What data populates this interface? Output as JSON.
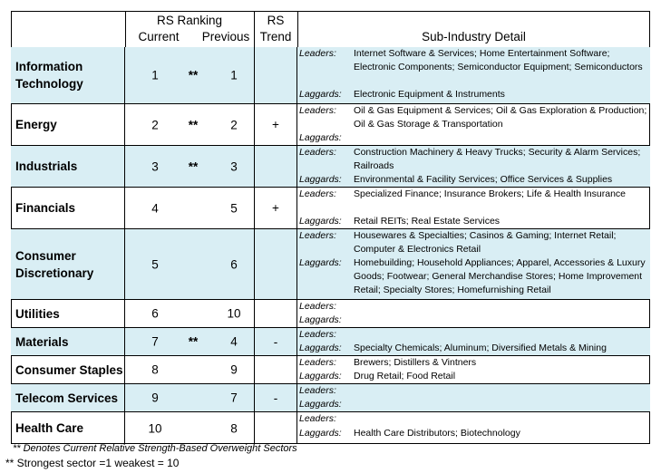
{
  "header": {
    "rs_ranking": "RS Ranking",
    "current": "Current",
    "previous": "Previous",
    "rs": "RS",
    "trend": "Trend",
    "sub_industry_detail": "Sub-Industry Detail"
  },
  "labels": {
    "leaders": "Leaders:",
    "laggards": "Laggards:"
  },
  "rows": [
    {
      "sector": "Information Technology",
      "current": "1",
      "star": "**",
      "previous": "1",
      "trend": "",
      "leaders": "Internet Software & Services; Home Entertainment Software; Electronic Components; Semiconductor Equipment; Semiconductors",
      "laggards": "Electronic Equipment & Instruments"
    },
    {
      "sector": "Energy",
      "current": "2",
      "star": "**",
      "previous": "2",
      "trend": "+",
      "leaders": "Oil & Gas Equipment & Services; Oil & Gas Exploration & Production; Oil & Gas Storage & Transportation",
      "laggards": ""
    },
    {
      "sector": "Industrials",
      "current": "3",
      "star": "**",
      "previous": "3",
      "trend": "",
      "leaders": "Construction Machinery & Heavy Trucks; Security & Alarm Services; Railroads",
      "laggards": "Environmental & Facility Services; Office Services & Supplies"
    },
    {
      "sector": "Financials",
      "current": "4",
      "star": "",
      "previous": "5",
      "trend": "+",
      "leaders": "Specialized Finance; Insurance Brokers; Life & Health Insurance",
      "laggards": "Retail REITs; Real Estate Services"
    },
    {
      "sector": "Consumer Discretionary",
      "current": "5",
      "star": "",
      "previous": "6",
      "trend": "",
      "leaders": "Housewares & Specialties; Casinos & Gaming; Internet Retail; Computer & Electronics Retail",
      "laggards": "Homebuilding; Household Appliances; Apparel, Accessories & Luxury Goods; Footwear; General Merchandise Stores; Home Improvement Retail; Specialty Stores; Homefurnishing Retail"
    },
    {
      "sector": "Utilities",
      "current": "6",
      "star": "",
      "previous": "10",
      "trend": "",
      "leaders": "",
      "laggards": ""
    },
    {
      "sector": "Materials",
      "current": "7",
      "star": "**",
      "previous": "4",
      "trend": "-",
      "leaders": "",
      "laggards": "Specialty Chemicals; Aluminum; Diversified Metals & Mining"
    },
    {
      "sector": "Consumer Staples",
      "current": "8",
      "star": "",
      "previous": "9",
      "trend": "",
      "leaders": "Brewers; Distillers & Vintners",
      "laggards": "Drug Retail; Food Retail"
    },
    {
      "sector": "Telecom Services",
      "current": "9",
      "star": "",
      "previous": "7",
      "trend": "-",
      "leaders": "",
      "laggards": ""
    },
    {
      "sector": "Health Care",
      "current": "10",
      "star": "",
      "previous": "8",
      "trend": "",
      "leaders": "",
      "laggards": "Health Care Distributors; Biotechnology"
    }
  ],
  "footnotes": {
    "line1": "** Denotes Current Relative Strength-Based Overweight Sectors",
    "line2": "** Strongest sector =1 weakest = 10"
  }
}
